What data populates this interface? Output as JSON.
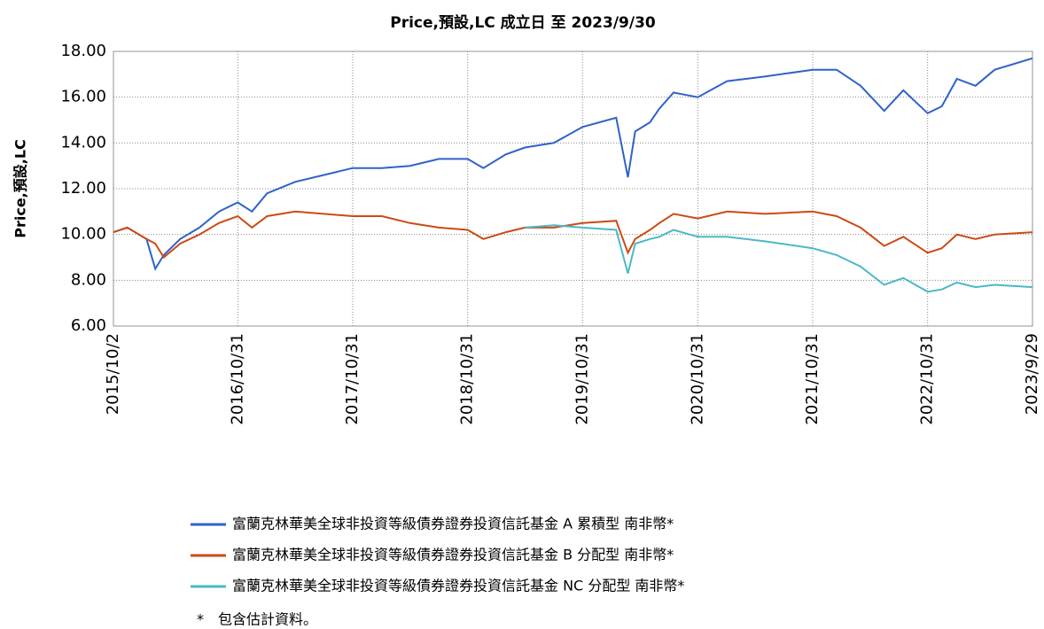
{
  "chart_data": {
    "type": "line",
    "title": "Price,預設,LC 成立日 至 2023/9/30",
    "y_label": "Price,預設,LC",
    "x": [
      "2015/10/2",
      "2015/11/15",
      "2016/1/15",
      "2016/2/12",
      "2016/3/10",
      "2016/5/1",
      "2016/7/1",
      "2016/9/1",
      "2016/10/31",
      "2016/12/15",
      "2017/2/1",
      "2017/5/1",
      "2017/10/31",
      "2018/2/1",
      "2018/5/1",
      "2018/8/1",
      "2018/10/31",
      "2018/12/20",
      "2019/3/1",
      "2019/5/1",
      "2019/8/1",
      "2019/10/31",
      "2020/2/15",
      "2020/3/23",
      "2020/4/15",
      "2020/6/1",
      "2020/7/1",
      "2020/8/15",
      "2020/10/31",
      "2021/2/1",
      "2021/6/1",
      "2021/10/31",
      "2022/1/15",
      "2022/4/1",
      "2022/6/15",
      "2022/8/15",
      "2022/10/31",
      "2022/12/15",
      "2023/2/1",
      "2023/4/1",
      "2023/6/1",
      "2023/9/29"
    ],
    "series": [
      {
        "name": "富蘭克林華美全球非投資等級債券證券投資信託基金 A 累積型 南非幣*",
        "color": "#2f62c9",
        "values": [
          10.1,
          10.3,
          9.8,
          8.5,
          9.1,
          9.8,
          10.3,
          11.0,
          11.4,
          11.0,
          11.8,
          12.3,
          12.9,
          12.9,
          13.0,
          13.3,
          13.3,
          12.9,
          13.5,
          13.8,
          14.0,
          14.7,
          15.1,
          12.5,
          14.5,
          14.9,
          15.5,
          16.2,
          16.0,
          16.7,
          16.9,
          17.2,
          17.2,
          16.5,
          15.4,
          16.3,
          15.3,
          15.6,
          16.8,
          16.5,
          17.2,
          17.7
        ]
      },
      {
        "name": "富蘭克林華美全球非投資等級債券證券投資信託基金 B 分配型 南非幣*",
        "color": "#cc4a14",
        "values": [
          10.1,
          10.3,
          9.8,
          9.6,
          9.0,
          9.6,
          10.0,
          10.5,
          10.8,
          10.3,
          10.8,
          11.0,
          10.8,
          10.8,
          10.5,
          10.3,
          10.2,
          9.8,
          10.1,
          10.3,
          10.3,
          10.5,
          10.6,
          9.2,
          9.8,
          10.2,
          10.5,
          10.9,
          10.7,
          11.0,
          10.9,
          11.0,
          10.8,
          10.3,
          9.5,
          9.9,
          9.2,
          9.4,
          10.0,
          9.8,
          10.0,
          10.1
        ]
      },
      {
        "name": "富蘭克林華美全球非投資等級債券證券投資信託基金 NC 分配型 南非幣*",
        "color": "#4ab8c8",
        "values": [
          null,
          null,
          null,
          null,
          null,
          null,
          null,
          null,
          null,
          null,
          null,
          null,
          null,
          null,
          null,
          null,
          null,
          null,
          null,
          10.3,
          10.4,
          10.3,
          10.2,
          8.3,
          9.6,
          9.8,
          9.9,
          10.2,
          9.9,
          9.9,
          9.7,
          9.4,
          9.1,
          8.6,
          7.8,
          8.1,
          7.5,
          7.6,
          7.9,
          7.7,
          7.8,
          7.7
        ]
      }
    ],
    "xlim": [
      "2015/10/2",
      "2023/9/29"
    ],
    "xticks": [
      "2015/10/2",
      "2016/10/31",
      "2017/10/31",
      "2018/10/31",
      "2019/10/31",
      "2020/10/31",
      "2021/10/31",
      "2022/10/31",
      "2023/9/29"
    ],
    "ylim": [
      6,
      18
    ],
    "yticks": [
      {
        "value": 6,
        "label": "6.00"
      },
      {
        "value": 8,
        "label": "8.00"
      },
      {
        "value": 10,
        "label": "10.00"
      },
      {
        "value": 12,
        "label": "12.00"
      },
      {
        "value": 14,
        "label": "14.00"
      },
      {
        "value": 16,
        "label": "16.00"
      },
      {
        "value": 18,
        "label": "18.00"
      }
    ],
    "grid": true,
    "legend": "bottom",
    "footnote": "*　包含估計資料。"
  }
}
